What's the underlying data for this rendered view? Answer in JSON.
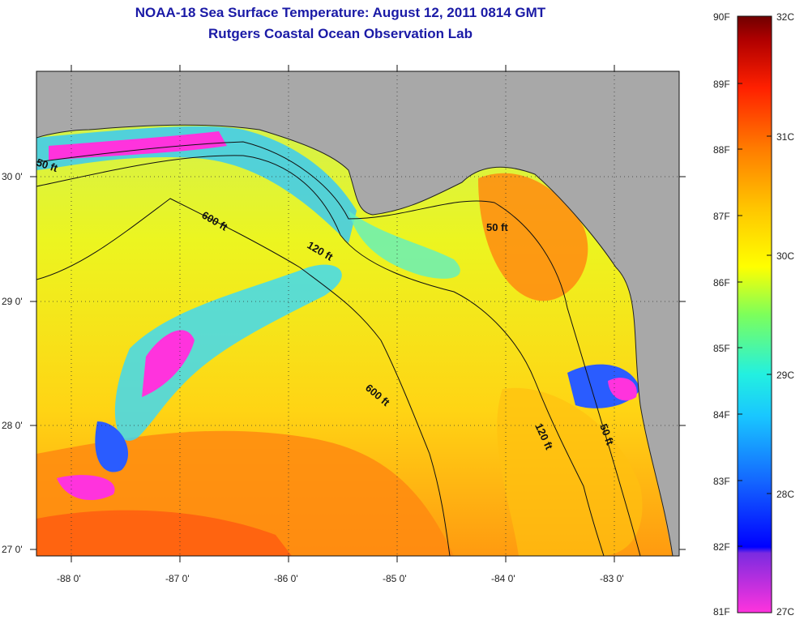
{
  "title": "NOAA-18 Sea Surface Temperature:  August 12, 2011 0814 GMT",
  "subtitle": "Rutgers Coastal Ocean Observation Lab",
  "lat_labels": [
    "30 0'",
    "29 0'",
    "28 0'",
    "27 0'"
  ],
  "lon_labels": [
    "-88 0'",
    "-87 0'",
    "-86 0'",
    "-85 0'",
    "-84 0'",
    "-83 0'"
  ],
  "contours": [
    "50 ft",
    "600 ft",
    "120 ft",
    "600 ft",
    "50 ft",
    "120 ft",
    "50 ft"
  ],
  "colorbar": {
    "fahrenheit": [
      "90F",
      "89F",
      "88F",
      "87F",
      "86F",
      "85F",
      "84F",
      "83F",
      "82F",
      "81F"
    ],
    "celsius": [
      "32C",
      "31C",
      "30C",
      "29C",
      "28C",
      "27C"
    ]
  },
  "colors": {
    "land": "#a8a8a8",
    "title": "#1a1aa6"
  }
}
